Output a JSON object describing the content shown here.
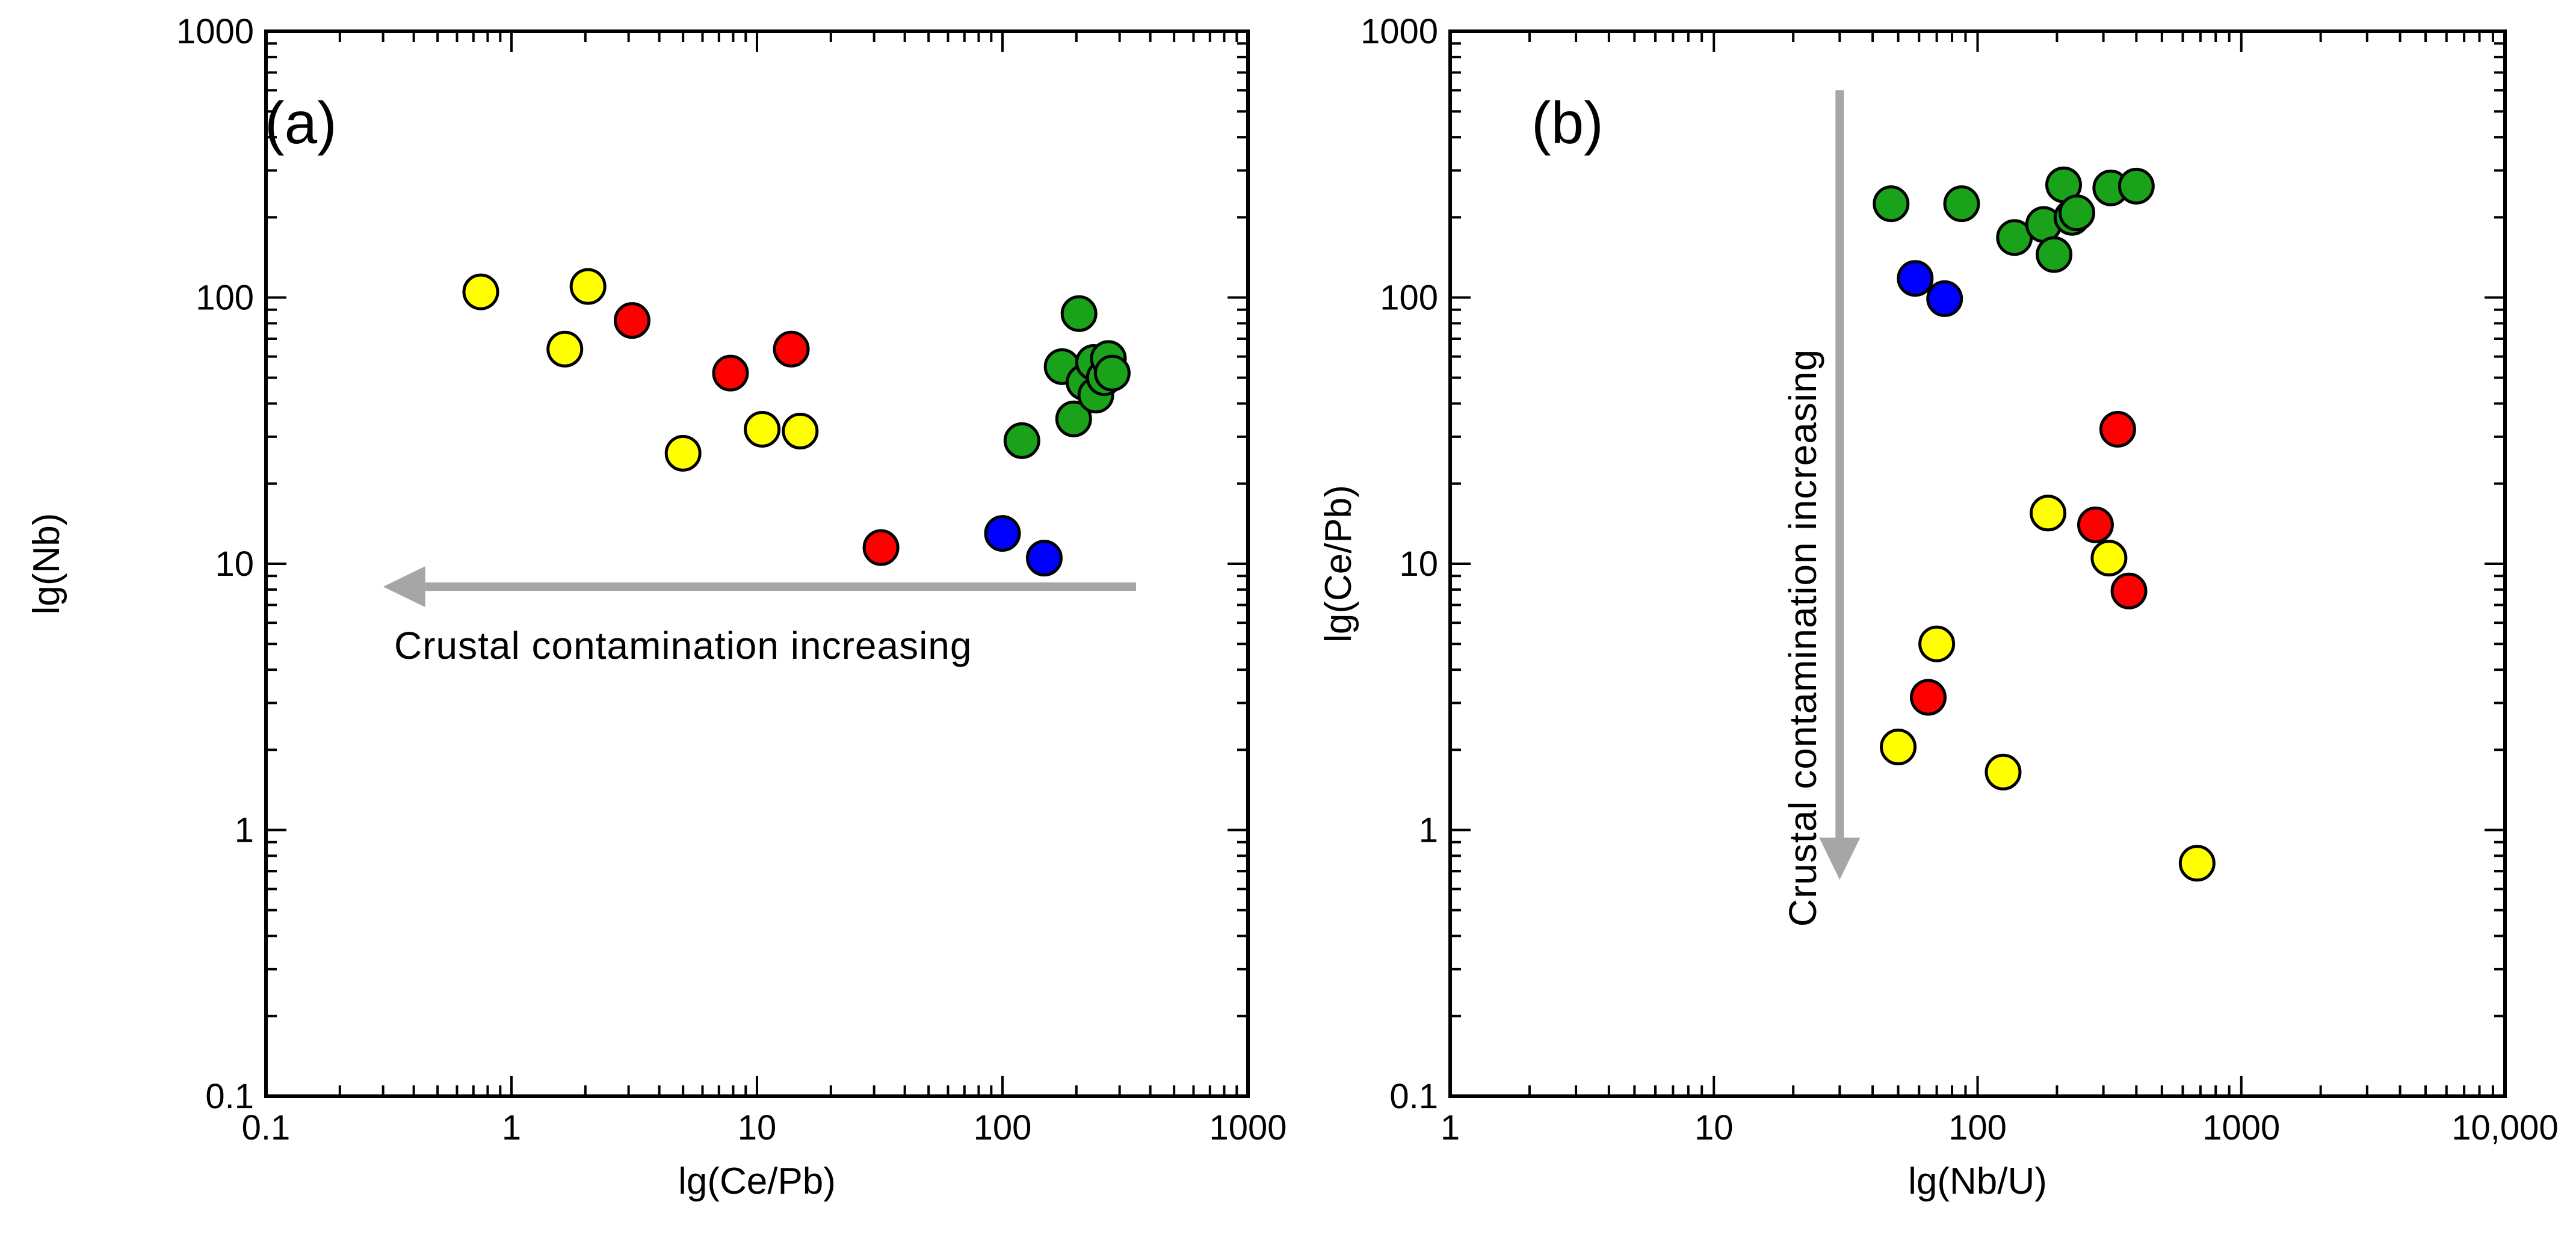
{
  "chart_data": [
    {
      "type": "scatter",
      "panel_label": "(a)",
      "xlabel": "lg(Ce/Pb)",
      "ylabel": "lg(Nb)",
      "xscale": "log",
      "yscale": "log",
      "xlim": [
        0.1,
        1000
      ],
      "ylim": [
        0.1,
        1000
      ],
      "x_tick_labels": [
        "0.1",
        "1",
        "10",
        "100",
        "1000"
      ],
      "y_tick_labels": [
        "0.1",
        "1",
        "10",
        "100",
        "1000"
      ],
      "annotation": {
        "text": "Crustal contamination increasing",
        "arrow_from": [
          350,
          8.2
        ],
        "arrow_to": [
          0.3,
          8.2
        ]
      },
      "series": [
        {
          "name": "yellow group",
          "color": "#ffff00",
          "points": [
            [
              0.75,
              105
            ],
            [
              1.65,
              64
            ],
            [
              2.05,
              110
            ],
            [
              5.0,
              26
            ],
            [
              10.5,
              32
            ],
            [
              15.0,
              31.5
            ]
          ]
        },
        {
          "name": "red group",
          "color": "#ff0000",
          "points": [
            [
              3.1,
              82
            ],
            [
              7.8,
              52
            ],
            [
              13.8,
              64
            ],
            [
              32,
              11.5
            ]
          ]
        },
        {
          "name": "blue group",
          "color": "#0000ff",
          "points": [
            [
              100,
              13
            ],
            [
              148,
              10.5
            ]
          ]
        },
        {
          "name": "green group",
          "color": "#1aa31a",
          "points": [
            [
              120,
              29
            ],
            [
              175,
              55
            ],
            [
              195,
              35
            ],
            [
              205,
              87
            ],
            [
              215,
              48
            ],
            [
              235,
              57
            ],
            [
              240,
              43
            ],
            [
              260,
              50
            ],
            [
              270,
              59
            ],
            [
              280,
              52
            ]
          ]
        }
      ]
    },
    {
      "type": "scatter",
      "panel_label": "(b)",
      "xlabel": "lg(Nb/U)",
      "ylabel": "lg(Ce/Pb)",
      "xscale": "log",
      "yscale": "log",
      "xlim": [
        1,
        10000
      ],
      "ylim": [
        0.1,
        1000
      ],
      "x_tick_labels": [
        "1",
        "10",
        "100",
        "1000",
        "10,000"
      ],
      "y_tick_labels": [
        "0.1",
        "1",
        "10",
        "100",
        "1000"
      ],
      "annotation": {
        "text": "Crustal contamination increasing",
        "arrow_from": [
          30,
          600
        ],
        "arrow_to": [
          30,
          0.65
        ]
      },
      "series": [
        {
          "name": "yellow group",
          "color": "#ffff00",
          "points": [
            [
              50,
              2.05
            ],
            [
              70,
              5.0
            ],
            [
              125,
              1.65
            ],
            [
              185,
              15.5
            ],
            [
              315,
              10.5
            ],
            [
              680,
              0.75
            ]
          ]
        },
        {
          "name": "red group",
          "color": "#ff0000",
          "points": [
            [
              65,
              3.15
            ],
            [
              280,
              14.0
            ],
            [
              340,
              32.0
            ],
            [
              375,
              7.9
            ]
          ]
        },
        {
          "name": "blue group",
          "color": "#0000ff",
          "points": [
            [
              58,
              118
            ],
            [
              75,
              99
            ]
          ]
        },
        {
          "name": "green group",
          "color": "#1aa31a",
          "points": [
            [
              47,
              225
            ],
            [
              87,
              225
            ],
            [
              138,
              168
            ],
            [
              178,
              188
            ],
            [
              195,
              145
            ],
            [
              212,
              265
            ],
            [
              228,
              200
            ],
            [
              238,
              208
            ],
            [
              320,
              258
            ],
            [
              400,
              262
            ]
          ]
        }
      ]
    }
  ]
}
